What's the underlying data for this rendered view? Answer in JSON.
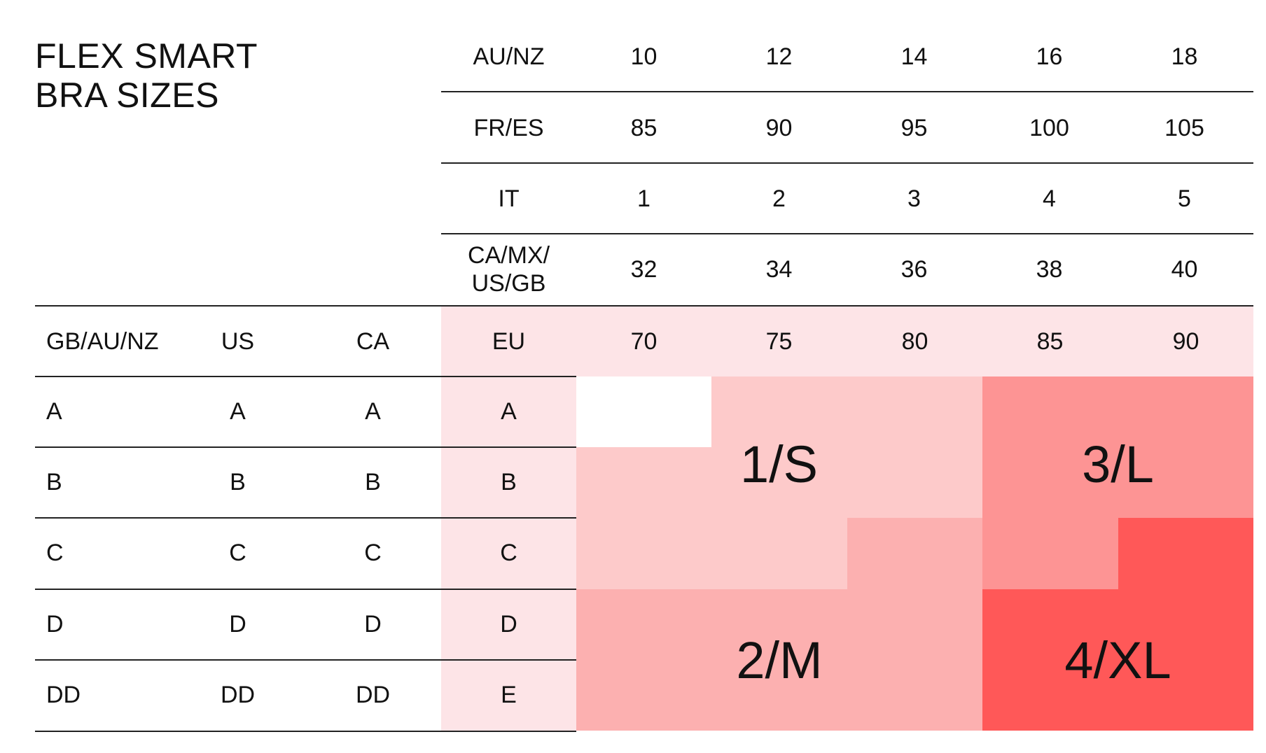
{
  "title": {
    "line1": "FLEX SMART",
    "line2": "BRA SIZES"
  },
  "band_systems": [
    {
      "label": "AU/NZ",
      "values": [
        "10",
        "12",
        "14",
        "16",
        "18"
      ]
    },
    {
      "label": "FR/ES",
      "values": [
        "85",
        "90",
        "95",
        "100",
        "105"
      ]
    },
    {
      "label": "IT",
      "values": [
        "1",
        "2",
        "3",
        "4",
        "5"
      ]
    },
    {
      "label": "CA/MX/\nUS/GB",
      "values": [
        "32",
        "34",
        "36",
        "38",
        "40"
      ]
    }
  ],
  "cup_header": {
    "gb": "GB/AU/NZ",
    "us": "US",
    "ca": "CA",
    "eu": "EU",
    "values": [
      "70",
      "75",
      "80",
      "85",
      "90"
    ]
  },
  "cup_rows": [
    {
      "gb": "A",
      "us": "A",
      "ca": "A",
      "eu": "A"
    },
    {
      "gb": "B",
      "us": "B",
      "ca": "B",
      "eu": "B"
    },
    {
      "gb": "C",
      "us": "C",
      "ca": "C",
      "eu": "C"
    },
    {
      "gb": "D",
      "us": "D",
      "ca": "D",
      "eu": "D"
    },
    {
      "gb": "DD",
      "us": "DD",
      "ca": "DD",
      "eu": "E"
    }
  ],
  "sizes": {
    "s": "1/S",
    "m": "2/M",
    "l": "3/L",
    "xl": "4/XL"
  },
  "colors": {
    "eu_column": "#fde4e7",
    "size_s": "#fdcaca",
    "size_m": "#fcb0b0",
    "size_l": "#fd9494",
    "size_xl": "#ff5858"
  }
}
